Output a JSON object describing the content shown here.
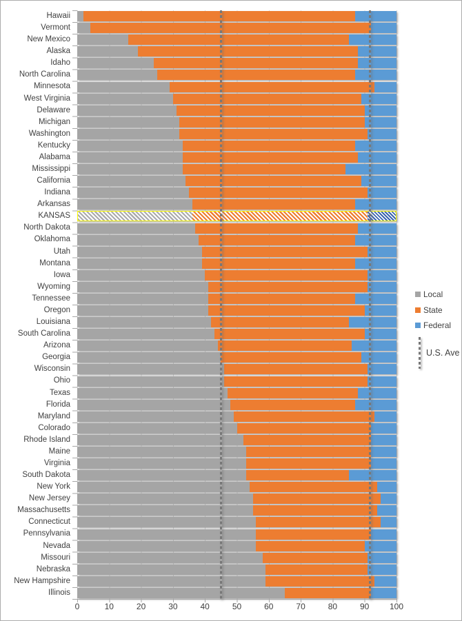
{
  "chart_data": {
    "type": "bar",
    "orientation": "horizontal-stacked",
    "title": "",
    "xlabel": "",
    "ylabel": "",
    "xlim": [
      0,
      100
    ],
    "x_ticks": [
      0,
      10,
      20,
      30,
      40,
      50,
      60,
      70,
      80,
      90,
      100
    ],
    "grid": "vertical",
    "categories": [
      "Hawaii",
      "Vermont",
      "New Mexico",
      "Alaska",
      "Idaho",
      "North Carolina",
      "Minnesota",
      "West Virginia",
      "Delaware",
      "Michigan",
      "Washington",
      "Kentucky",
      "Alabama",
      "Mississippi",
      "California",
      "Indiana",
      "Arkansas",
      "KANSAS",
      "North Dakota",
      "Oklahoma",
      "Utah",
      "Montana",
      "Iowa",
      "Wyoming",
      "Tennessee",
      "Oregon",
      "Louisiana",
      "South Carolina",
      "Arizona",
      "Georgia",
      "Wisconsin",
      "Ohio",
      "Texas",
      "Florida",
      "Maryland",
      "Colorado",
      "Rhode Island",
      "Maine",
      "Virginia",
      "South Dakota",
      "New York",
      "New Jersey",
      "Massachusetts",
      "Connecticut",
      "Pennsylvania",
      "Nevada",
      "Missouri",
      "Nebraska",
      "New Hampshire",
      "Illinois"
    ],
    "series": [
      {
        "name": "Local",
        "color": "#A5A5A5",
        "values": [
          2,
          4,
          16,
          19,
          24,
          25,
          29,
          30,
          31,
          32,
          32,
          33,
          33,
          33,
          34,
          35,
          36,
          36,
          37,
          38,
          39,
          39,
          40,
          41,
          41,
          41,
          42,
          43,
          44,
          45,
          46,
          46,
          47,
          48,
          49,
          50,
          52,
          53,
          53,
          53,
          54,
          55,
          55,
          56,
          56,
          56,
          58,
          59,
          59,
          65
        ]
      },
      {
        "name": "State",
        "color": "#ED7D31",
        "values": [
          85,
          88,
          69,
          69,
          64,
          62,
          64,
          59,
          59,
          58,
          59,
          54,
          55,
          51,
          55,
          56,
          51,
          55,
          51,
          49,
          52,
          48,
          51,
          50,
          46,
          49,
          43,
          47,
          42,
          44,
          45,
          45,
          41,
          39,
          44,
          42,
          40,
          39,
          39,
          32,
          40,
          40,
          39,
          39,
          36,
          34,
          33,
          32,
          34,
          27
        ]
      },
      {
        "name": "Federal",
        "color": "#5B9BD5",
        "values": [
          13,
          8,
          15,
          12,
          12,
          13,
          7,
          11,
          10,
          10,
          9,
          13,
          12,
          16,
          11,
          9,
          13,
          9,
          12,
          13,
          9,
          13,
          9,
          9,
          13,
          10,
          15,
          10,
          14,
          11,
          9,
          9,
          12,
          13,
          7,
          8,
          8,
          8,
          8,
          15,
          6,
          5,
          6,
          5,
          8,
          10,
          9,
          9,
          7,
          8
        ]
      }
    ],
    "highlight_category": "KANSAS",
    "highlight_border_color": "#FFFF00",
    "reference_lines": [
      45,
      91.7
    ],
    "legend_position": "right"
  },
  "legend": {
    "local_label": "Local",
    "state_label": "State",
    "federal_label": "Federal",
    "us_average_label": "U.S. Ave"
  },
  "colors": {
    "local": "#A5A5A5",
    "state": "#ED7D31",
    "federal": "#5B9BD5",
    "highlight_border": "#FFFF00",
    "reference_line": "#7F7F7F",
    "gridline": "#D9D9D9",
    "axis": "#A6A6A6",
    "text": "#404040"
  }
}
